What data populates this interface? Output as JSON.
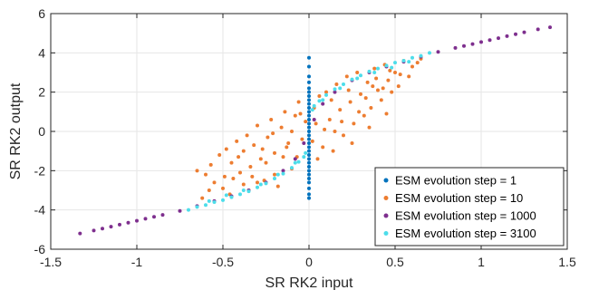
{
  "chart_data": {
    "type": "scatter",
    "title": "",
    "xlabel": "SR RK2 input",
    "ylabel": "SR RK2 output",
    "xlim": [
      -1.5,
      1.5
    ],
    "ylim": [
      -6,
      6
    ],
    "xticks": [
      -1.5,
      -1,
      -0.5,
      0,
      0.5,
      1,
      1.5
    ],
    "xtick_labels": [
      "-1.5",
      "-1",
      "-0.5",
      "0",
      "0.5",
      "1",
      "1.5"
    ],
    "yticks": [
      -6,
      -4,
      -2,
      0,
      2,
      4,
      6
    ],
    "ytick_labels": [
      "-6",
      "-4",
      "-2",
      "0",
      "2",
      "4",
      "6"
    ],
    "grid": true,
    "legend_position": "bottom-right",
    "series": [
      {
        "name": "ESM evolution step = 1",
        "color": "#0072BD",
        "points": [
          [
            0,
            -2.4
          ],
          [
            0,
            -2.2
          ],
          [
            0,
            -2.0
          ],
          [
            0,
            -1.8
          ],
          [
            0,
            -1.6
          ],
          [
            0,
            -1.4
          ],
          [
            0,
            -1.2
          ],
          [
            0,
            -1.0
          ],
          [
            0,
            -0.8
          ],
          [
            0,
            -0.6
          ],
          [
            0,
            -0.4
          ],
          [
            0,
            -0.2
          ],
          [
            0,
            0.0
          ],
          [
            0,
            0.2
          ],
          [
            0,
            0.4
          ],
          [
            0,
            0.6
          ],
          [
            0,
            0.8
          ],
          [
            0,
            1.0
          ],
          [
            0,
            1.2
          ],
          [
            0,
            1.4
          ],
          [
            0,
            1.6
          ],
          [
            0,
            1.8
          ],
          [
            0,
            2.0
          ],
          [
            0,
            2.2
          ],
          [
            0,
            2.5
          ],
          [
            0,
            2.8
          ],
          [
            0,
            3.3
          ],
          [
            0,
            3.75
          ],
          [
            0,
            -2.6
          ],
          [
            0,
            -2.9
          ],
          [
            0,
            -3.2
          ],
          [
            0,
            -3.4
          ]
        ]
      },
      {
        "name": "ESM evolution step = 10",
        "color": "#ED7D31",
        "points": [
          [
            -0.52,
            -1.2
          ],
          [
            -0.48,
            -0.9
          ],
          [
            -0.45,
            -1.6
          ],
          [
            -0.42,
            -0.5
          ],
          [
            -0.4,
            -2.1
          ],
          [
            -0.38,
            -1.0
          ],
          [
            -0.36,
            -0.2
          ],
          [
            -0.34,
            -1.8
          ],
          [
            -0.32,
            -0.7
          ],
          [
            -0.3,
            0.3
          ],
          [
            -0.28,
            -1.4
          ],
          [
            -0.26,
            -2.5
          ],
          [
            -0.24,
            -0.3
          ],
          [
            -0.22,
            0.6
          ],
          [
            -0.2,
            -1.1
          ],
          [
            -0.18,
            -2.8
          ],
          [
            -0.16,
            0.2
          ],
          [
            -0.14,
            1.0
          ],
          [
            -0.12,
            -0.6
          ],
          [
            -0.1,
            -1.9
          ],
          [
            -0.08,
            0.8
          ],
          [
            -0.06,
            1.5
          ],
          [
            -0.04,
            -0.4
          ],
          [
            -0.02,
            0.5
          ],
          [
            0.02,
            -0.5
          ],
          [
            0.04,
            0.4
          ],
          [
            0.06,
            1.8
          ],
          [
            0.08,
            -0.8
          ],
          [
            0.1,
            2.0
          ],
          [
            0.12,
            0.6
          ],
          [
            0.14,
            -1.0
          ],
          [
            0.16,
            2.4
          ],
          [
            0.18,
            1.1
          ],
          [
            0.2,
            -0.2
          ],
          [
            0.22,
            2.8
          ],
          [
            0.24,
            1.5
          ],
          [
            0.26,
            0.4
          ],
          [
            0.28,
            3.0
          ],
          [
            0.3,
            1.9
          ],
          [
            0.32,
            0.8
          ],
          [
            0.34,
            2.5
          ],
          [
            0.36,
            1.2
          ],
          [
            0.38,
            3.2
          ],
          [
            0.4,
            2.1
          ],
          [
            0.42,
            1.6
          ],
          [
            0.44,
            3.4
          ],
          [
            0.46,
            2.6
          ],
          [
            0.48,
            2.0
          ],
          [
            0.5,
            3.0
          ],
          [
            0.52,
            2.3
          ],
          [
            0.55,
            3.6
          ],
          [
            0.58,
            2.8
          ],
          [
            0.6,
            3.3
          ],
          [
            0.63,
            3.5
          ],
          [
            -0.55,
            -2.6
          ],
          [
            -0.58,
            -3.0
          ],
          [
            -0.6,
            -2.2
          ],
          [
            -0.5,
            -2.9
          ],
          [
            -0.46,
            -3.2
          ],
          [
            -0.44,
            -2.4
          ],
          [
            -0.35,
            -3.0
          ],
          [
            -0.3,
            -2.6
          ],
          [
            -0.25,
            -1.6
          ],
          [
            -0.2,
            -2.2
          ],
          [
            -0.15,
            -1.3
          ],
          [
            -0.1,
            0.0
          ],
          [
            -0.05,
            0.9
          ],
          [
            0.05,
            -1.4
          ],
          [
            0.15,
            0.0
          ],
          [
            0.25,
            -0.6
          ],
          [
            0.35,
            0.2
          ],
          [
            0.45,
            0.9
          ],
          [
            -0.62,
            -3.4
          ],
          [
            -0.57,
            -1.7
          ],
          [
            -0.49,
            -2.3
          ],
          [
            -0.41,
            -1.3
          ],
          [
            -0.33,
            -2.3
          ],
          [
            -0.27,
            -0.9
          ],
          [
            -0.21,
            -0.1
          ],
          [
            -0.13,
            -0.8
          ],
          [
            -0.07,
            -1.3
          ],
          [
            0.03,
            1.2
          ],
          [
            0.09,
            0.1
          ],
          [
            0.13,
            1.6
          ],
          [
            0.19,
            0.5
          ],
          [
            0.23,
            2.1
          ],
          [
            0.29,
            1.0
          ],
          [
            0.33,
            1.7
          ],
          [
            0.39,
            2.7
          ],
          [
            0.43,
            2.2
          ],
          [
            0.47,
            3.1
          ],
          [
            0.53,
            2.9
          ],
          [
            -0.65,
            -2.0
          ],
          [
            0.65,
            3.7
          ],
          [
            -0.38,
            -2.7
          ],
          [
            0.37,
            2.3
          ]
        ]
      },
      {
        "name": "ESM evolution step = 1000",
        "color": "#7E2F8E",
        "points": [
          [
            -1.33,
            -5.2
          ],
          [
            -1.25,
            -5.05
          ],
          [
            -1.15,
            -4.85
          ],
          [
            -1.05,
            -4.65
          ],
          [
            -0.95,
            -4.45
          ],
          [
            -0.85,
            -4.25
          ],
          [
            -0.75,
            -4.05
          ],
          [
            -0.65,
            -3.8
          ],
          [
            -0.55,
            -3.55
          ],
          [
            -0.45,
            -3.3
          ],
          [
            -0.35,
            -3.0
          ],
          [
            -0.25,
            -2.6
          ],
          [
            -0.15,
            -2.0
          ],
          [
            -0.08,
            -1.4
          ],
          [
            -0.03,
            -0.6
          ],
          [
            0.03,
            0.6
          ],
          [
            0.08,
            1.4
          ],
          [
            0.15,
            2.0
          ],
          [
            0.25,
            2.6
          ],
          [
            0.35,
            3.0
          ],
          [
            0.45,
            3.3
          ],
          [
            0.55,
            3.55
          ],
          [
            0.65,
            3.8
          ],
          [
            0.75,
            4.05
          ],
          [
            0.85,
            4.25
          ],
          [
            0.95,
            4.45
          ],
          [
            1.05,
            4.65
          ],
          [
            1.15,
            4.85
          ],
          [
            1.25,
            5.05
          ],
          [
            1.33,
            5.2
          ],
          [
            1.4,
            5.3
          ],
          [
            -1.2,
            -4.95
          ],
          [
            1.2,
            4.95
          ],
          [
            -1.1,
            -4.75
          ],
          [
            1.1,
            4.75
          ],
          [
            -1.0,
            -4.55
          ],
          [
            1.0,
            4.55
          ],
          [
            -0.9,
            -4.35
          ],
          [
            0.9,
            4.35
          ]
        ]
      },
      {
        "name": "ESM evolution step = 3100",
        "color": "#4DDDEA",
        "points": [
          [
            -0.7,
            -4.0
          ],
          [
            -0.65,
            -3.85
          ],
          [
            -0.6,
            -3.75
          ],
          [
            -0.55,
            -3.6
          ],
          [
            -0.5,
            -3.5
          ],
          [
            -0.45,
            -3.35
          ],
          [
            -0.4,
            -3.2
          ],
          [
            -0.35,
            -3.05
          ],
          [
            -0.3,
            -2.85
          ],
          [
            -0.25,
            -2.65
          ],
          [
            -0.2,
            -2.4
          ],
          [
            -0.15,
            -2.15
          ],
          [
            -0.1,
            -1.85
          ],
          [
            -0.06,
            -1.55
          ],
          [
            -0.03,
            -1.3
          ],
          [
            0.03,
            1.3
          ],
          [
            0.06,
            1.55
          ],
          [
            0.1,
            1.85
          ],
          [
            0.15,
            2.15
          ],
          [
            0.2,
            2.4
          ],
          [
            0.25,
            2.65
          ],
          [
            0.3,
            2.85
          ],
          [
            0.35,
            3.05
          ],
          [
            0.4,
            3.2
          ],
          [
            0.45,
            3.35
          ],
          [
            0.5,
            3.5
          ],
          [
            0.55,
            3.6
          ],
          [
            0.6,
            3.75
          ],
          [
            0.65,
            3.85
          ],
          [
            0.7,
            4.0
          ],
          [
            -0.58,
            -3.55
          ],
          [
            -0.48,
            -3.25
          ],
          [
            -0.38,
            -3.0
          ],
          [
            -0.28,
            -2.7
          ],
          [
            -0.18,
            -2.2
          ],
          [
            -0.08,
            -1.6
          ],
          [
            0.08,
            1.6
          ],
          [
            0.18,
            2.2
          ],
          [
            0.28,
            2.7
          ],
          [
            0.38,
            3.0
          ],
          [
            0.48,
            3.25
          ],
          [
            0.58,
            3.55
          ],
          [
            -0.02,
            -1.1
          ],
          [
            0.02,
            1.1
          ]
        ]
      }
    ]
  }
}
